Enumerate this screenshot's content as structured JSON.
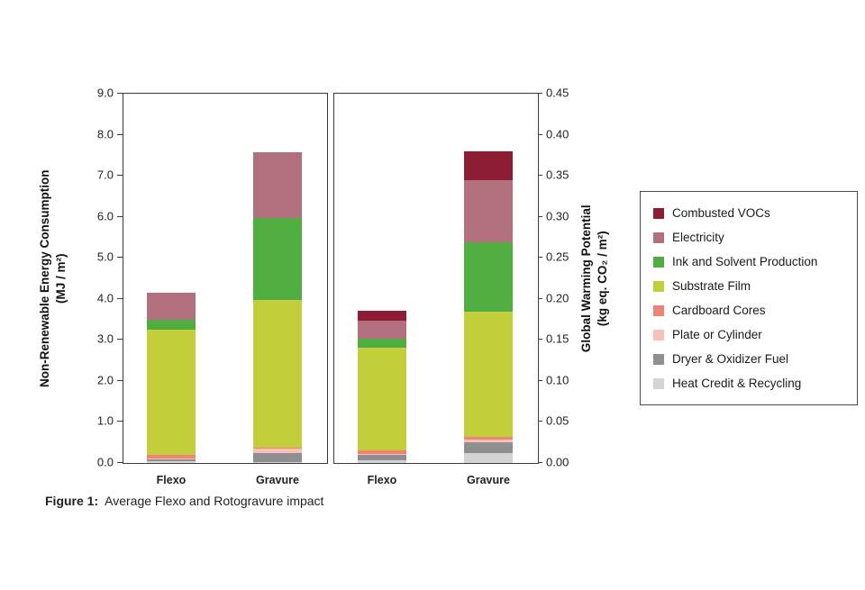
{
  "figure": {
    "caption_label": "Figure 1:",
    "caption_text": "Average Flexo and Rotogravure impact"
  },
  "left_axis": {
    "title_line1": "Non-Renewable Energy Consumption",
    "title_line2": "(MJ / m²)",
    "ticks": [
      "9.0",
      "8.0",
      "7.0",
      "6.0",
      "5.0",
      "4.0",
      "3.0",
      "2.0",
      "1.0",
      "0.0"
    ]
  },
  "right_axis": {
    "title_line1": "Global Warming Potential",
    "title_line2": "(kg eq. CO₂ / m²)",
    "ticks": [
      "0.45",
      "0.40",
      "0.35",
      "0.30",
      "0.25",
      "0.20",
      "0.15",
      "0.10",
      "0.05",
      "0.00"
    ]
  },
  "chart_data": {
    "type": "bar",
    "stacked": true,
    "segments_bottom_to_top": [
      {
        "name": "Heat Credit & Recycling",
        "color": "#d4d4d4"
      },
      {
        "name": "Dryer & Oxidizer Fuel",
        "color": "#8e8f90"
      },
      {
        "name": "Plate or Cylinder",
        "color": "#f7c0b8"
      },
      {
        "name": "Cardboard Cores",
        "color": "#f08474"
      },
      {
        "name": "Substrate Film",
        "color": "#c2cf3b"
      },
      {
        "name": "Ink and Solvent Production",
        "color": "#4fae3f"
      },
      {
        "name": "Electricity",
        "color": "#b2707e"
      },
      {
        "name": "Combusted VOCs",
        "color": "#8c1d33"
      }
    ],
    "panels": [
      {
        "name": "energy",
        "axis": "left",
        "ylabel": "Non-Renewable Energy Consumption (MJ / m²)",
        "ylim": [
          0,
          9.0
        ],
        "categories": [
          "Flexo",
          "Gravure"
        ],
        "values": {
          "Flexo": [
            0.05,
            0.04,
            0.03,
            0.08,
            3.05,
            0.25,
            0.65,
            0.0
          ],
          "Gravure": [
            0.03,
            0.22,
            0.1,
            0.02,
            3.6,
            2.0,
            1.6,
            0.0
          ]
        }
      },
      {
        "name": "gwp",
        "axis": "right",
        "ylabel": "Global Warming Potential (kg eq. CO₂ / m²)",
        "ylim": [
          0,
          0.45
        ],
        "categories": [
          "Flexo",
          "Gravure"
        ],
        "values": {
          "Flexo": [
            0.003,
            0.007,
            0.001,
            0.004,
            0.125,
            0.012,
            0.022,
            0.012
          ],
          "Gravure": [
            0.012,
            0.013,
            0.004,
            0.003,
            0.152,
            0.085,
            0.076,
            0.035
          ]
        }
      }
    ],
    "legend": [
      {
        "label": "Combusted VOCs",
        "color": "#8c1d33"
      },
      {
        "label": "Electricity",
        "color": "#b2707e"
      },
      {
        "label": "Ink and Solvent Production",
        "color": "#4fae3f"
      },
      {
        "label": "Substrate Film",
        "color": "#c2cf3b"
      },
      {
        "label": "Cardboard Cores",
        "color": "#f08474"
      },
      {
        "label": "Plate or Cylinder",
        "color": "#f7c0b8"
      },
      {
        "label": "Dryer & Oxidizer Fuel",
        "color": "#8e8f90"
      },
      {
        "label": "Heat Credit & Recycling",
        "color": "#d4d4d4"
      }
    ]
  }
}
